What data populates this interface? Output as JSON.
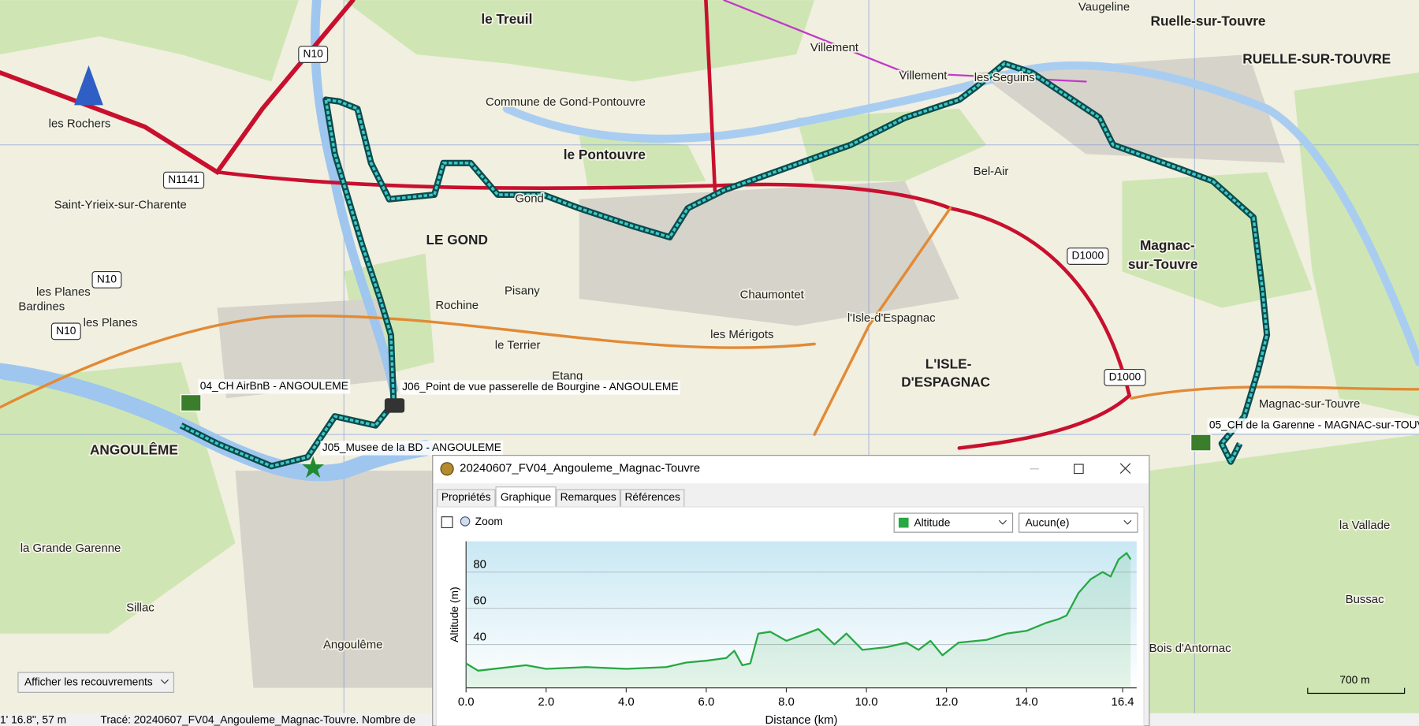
{
  "map": {
    "labels": [
      "le Treuil",
      "Vaugeline",
      "Ruelle-sur-Touvre",
      "RUELLE-SUR-TOUVRE",
      "Villement",
      "Villement",
      "les Seguins",
      "les Rochers",
      "N10",
      "N1141",
      "Commune de Gond-Pontouvre",
      "le Pontouvre",
      "Saint-Yrieix-sur-Charente",
      "LE GOND",
      "Bel-Air",
      "Gond",
      "N10",
      "D1000",
      "Magnac-",
      "sur-Touvre",
      "les Planes",
      "Bardines",
      "les Planes",
      "N10",
      "Pisany",
      "Rochine",
      "Chaumontet",
      "l'Isle-d'Espagnac",
      "les Mérigots",
      "le Terrier",
      "L'ISLE-",
      "D'ESPAGNAC",
      "D1000",
      "Etang",
      "04_CH AirBnB - ANGOULEME",
      "J06_Point de vue passerelle de Bourgine - ANGOULEME",
      "Magnac-sur-Touvre",
      "05_CH de la Garenne - MAGNAC-sur-TOUV",
      "ANGOULÊME",
      "J05_Musee de la BD - ANGOULEME",
      "la Grande Garenne",
      "Sillac",
      "Angoulême",
      "la Vallade",
      "Bussac",
      "Bois d'Antornac"
    ],
    "scale": "700 m",
    "overlay_button": "Afficher les recouvrements"
  },
  "status_bar": {
    "coords": "1' 16.8\", 57 m",
    "track": "Tracé: 20240607_FV04_Angouleme_Magnac-Touvre. Nombre de"
  },
  "dialog": {
    "title": "20240607_FV04_Angouleme_Magnac-Touvre",
    "tabs": [
      "Propriétés",
      "Graphique",
      "Remarques",
      "Références"
    ],
    "zoom": "Zoom",
    "series_select": "Altitude",
    "second_select": "Aucun(e)",
    "chart_data": {
      "type": "line",
      "x_label": "Distance  (km)",
      "y_label": "Altitude (m)",
      "x": [
        0,
        0.3,
        1.5,
        2,
        3,
        4,
        5,
        5.5,
        6,
        6.5,
        6.7,
        6.9,
        7.1,
        7.3,
        7.6,
        8,
        8.5,
        8.8,
        9.2,
        9.5,
        9.9,
        10.5,
        11,
        11.3,
        11.6,
        11.9,
        12.3,
        13,
        13.5,
        14,
        14.5,
        14.8,
        15,
        15.3,
        15.6,
        15.9,
        16.1,
        16.3,
        16.5,
        16.6
      ],
      "series": [
        {
          "name": "Altitude",
          "color": "#27a844",
          "values": [
            29.5,
            25.5,
            28.5,
            26.5,
            27.5,
            26.5,
            27.5,
            30,
            31,
            32.5,
            36.5,
            28.5,
            29.5,
            46,
            47,
            42,
            46,
            48.5,
            40,
            46,
            37,
            38.5,
            41,
            37,
            42,
            34,
            41,
            42.5,
            46,
            47.5,
            52,
            54,
            56,
            68.5,
            76,
            80,
            77.5,
            87,
            90.5,
            87
          ]
        }
      ],
      "xlim": [
        0,
        16.75
      ],
      "ylim": [
        16,
        97
      ],
      "xticks": [
        {
          "value": 0,
          "label": "0.0"
        },
        {
          "value": 2,
          "label": "2.0"
        },
        {
          "value": 4,
          "label": "4.0"
        },
        {
          "value": 6,
          "label": "6.0"
        },
        {
          "value": 8,
          "label": "8.0"
        },
        {
          "value": 10,
          "label": "10.0"
        },
        {
          "value": 12,
          "label": "12.0"
        },
        {
          "value": 14,
          "label": "14.0"
        },
        16.4
      ],
      "yticks": [
        40,
        60,
        80
      ],
      "grid": true
    }
  }
}
